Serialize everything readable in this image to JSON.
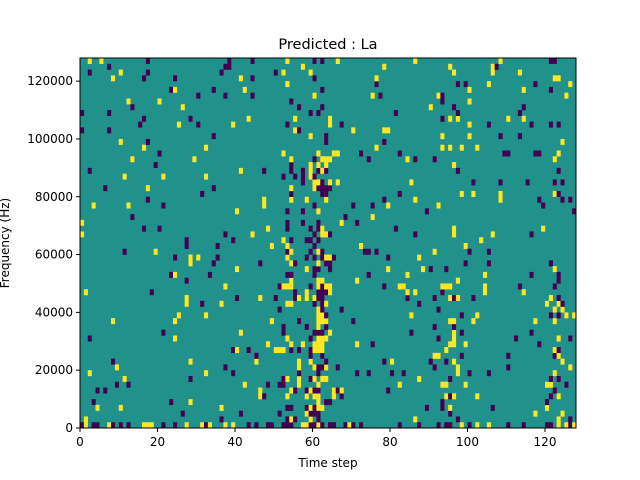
{
  "chart_data": {
    "type": "heatmap",
    "title": "Predicted : La",
    "xlabel": "Time step",
    "ylabel": "Frequency (Hz)",
    "xlim": [
      0,
      128
    ],
    "ylim": [
      0,
      128000
    ],
    "x_ticks": [
      0,
      20,
      40,
      60,
      80,
      100,
      120
    ],
    "y_ticks": [
      0,
      20000,
      40000,
      60000,
      80000,
      100000,
      120000
    ],
    "n_time_steps": 128,
    "n_freq_bins": 64,
    "colormap": "viridis",
    "value_levels": [
      -1,
      0,
      1
    ],
    "colors": {
      "low": "#440154",
      "mid": "#21918c",
      "high": "#fde725"
    },
    "background_value": 0,
    "grid": false
  }
}
